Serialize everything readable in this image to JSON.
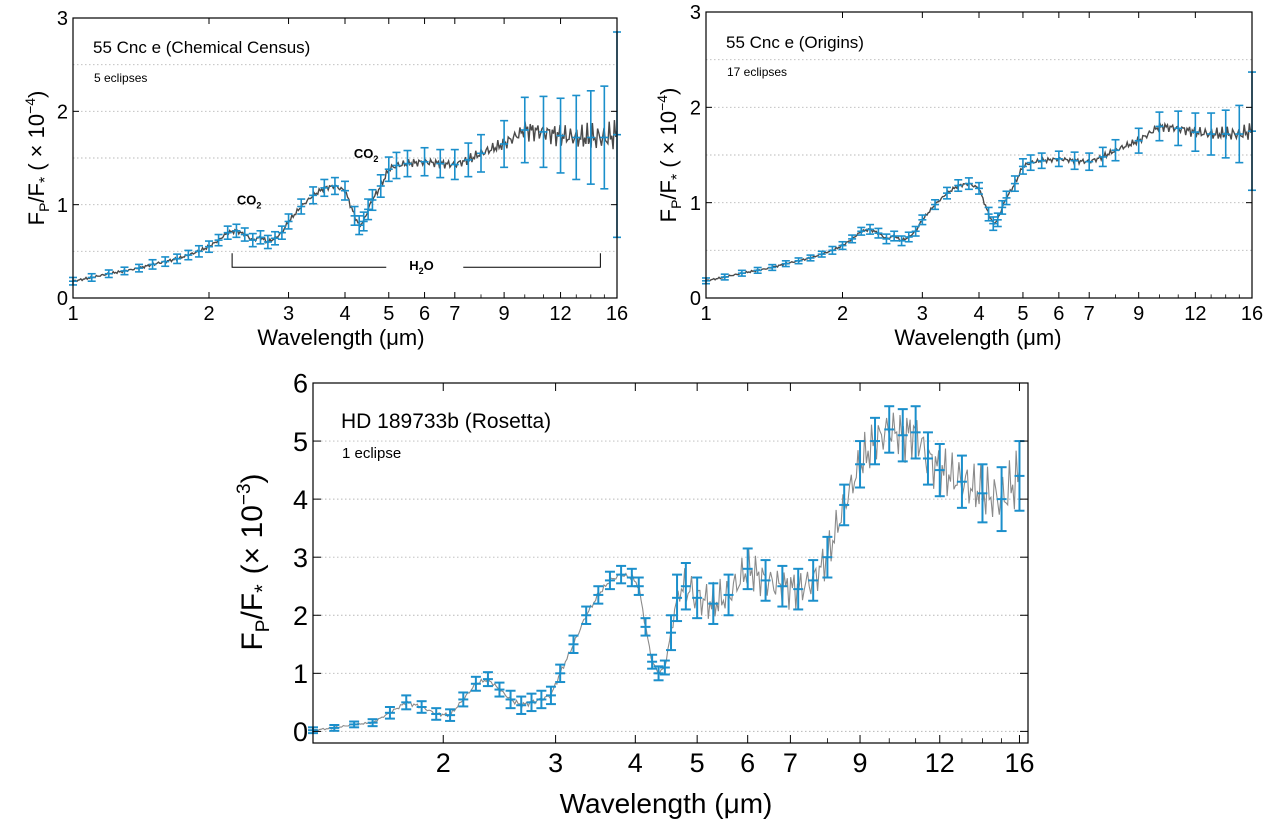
{
  "colors": {
    "errorbar": "#1b8fcb",
    "model_line_dark": "#4a4a4a",
    "model_line_grey": "#8a8a8a",
    "grid": "#b8b8b8",
    "frame": "#000000"
  },
  "chart_data": [
    {
      "type": "line",
      "title": "55 Cnc e (Chemical Census)",
      "subtitle": "5 eclipses",
      "xlabel": "Wavelength (μm)",
      "ylabel_main": "F",
      "ylabel_sub1": "P",
      "ylabel_mid": "/F",
      "ylabel_sub2": "*",
      "ylabel_scale": "( × 10",
      "ylabel_exp": "−4",
      "ylabel_close": ")",
      "x_scale": "log",
      "xlim": [
        1,
        16
      ],
      "ylim": [
        0,
        3
      ],
      "grid": "horizontal dotted",
      "xticks": [
        1,
        2,
        3,
        4,
        5,
        6,
        7,
        9,
        12,
        16
      ],
      "yticks": [
        0,
        1,
        2,
        3
      ],
      "x_ticklabels": [
        "1",
        "2",
        "3",
        "4",
        "5",
        "6",
        "7",
        "9",
        "12",
        "16"
      ],
      "y_ticklabels": [
        "0",
        "1",
        "2",
        "3"
      ],
      "annotations": [
        {
          "text": "CO",
          "sub": "2",
          "x": 2.45,
          "y": 1.0
        },
        {
          "text": "CO",
          "sub": "2",
          "x": 4.45,
          "y": 1.5
        },
        {
          "text": "H",
          "sub": "2",
          "after": "O",
          "x": 5.9,
          "y": 0.3
        }
      ],
      "h2o_bracket": {
        "x_start": 2.25,
        "x_end": 14.7,
        "y": 0.33
      },
      "spectrum": {
        "x": [
          1.0,
          1.1,
          1.2,
          1.3,
          1.4,
          1.5,
          1.6,
          1.7,
          1.8,
          1.9,
          2.0,
          2.1,
          2.2,
          2.3,
          2.4,
          2.5,
          2.6,
          2.7,
          2.8,
          2.9,
          3.0,
          3.2,
          3.4,
          3.6,
          3.8,
          4.0,
          4.2,
          4.3,
          4.4,
          4.5,
          4.6,
          4.8,
          5.0,
          5.2,
          5.5,
          6.0,
          6.5,
          7.0,
          7.5,
          8.0,
          9.0,
          10.0,
          11.0,
          12.0,
          13.0,
          14.0,
          15.0,
          16.0
        ],
        "y": [
          0.18,
          0.22,
          0.26,
          0.29,
          0.32,
          0.36,
          0.39,
          0.42,
          0.46,
          0.5,
          0.55,
          0.62,
          0.7,
          0.72,
          0.68,
          0.62,
          0.65,
          0.6,
          0.64,
          0.7,
          0.82,
          0.98,
          1.1,
          1.18,
          1.2,
          1.15,
          0.88,
          0.78,
          0.82,
          0.95,
          1.05,
          1.2,
          1.38,
          1.42,
          1.44,
          1.46,
          1.44,
          1.43,
          1.48,
          1.55,
          1.65,
          1.8,
          1.78,
          1.74,
          1.72,
          1.72,
          1.72,
          1.75
        ],
        "err": [
          0.04,
          0.04,
          0.04,
          0.04,
          0.04,
          0.05,
          0.05,
          0.05,
          0.05,
          0.06,
          0.06,
          0.06,
          0.07,
          0.07,
          0.07,
          0.07,
          0.07,
          0.07,
          0.07,
          0.07,
          0.08,
          0.08,
          0.09,
          0.09,
          0.09,
          0.1,
          0.1,
          0.1,
          0.1,
          0.11,
          0.11,
          0.12,
          0.13,
          0.14,
          0.14,
          0.15,
          0.15,
          0.16,
          0.18,
          0.2,
          0.25,
          0.35,
          0.38,
          0.4,
          0.45,
          0.5,
          0.55,
          1.1
        ]
      }
    },
    {
      "type": "line",
      "title": "55 Cnc e (Origins)",
      "subtitle": "17 eclipses",
      "xlabel": "Wavelength (μm)",
      "ylabel_main": "F",
      "ylabel_sub1": "P",
      "ylabel_mid": "/F",
      "ylabel_sub2": "*",
      "ylabel_scale": "( × 10",
      "ylabel_exp": "−4",
      "ylabel_close": ")",
      "x_scale": "log",
      "xlim": [
        1,
        16
      ],
      "ylim": [
        0,
        3
      ],
      "grid": "horizontal dotted",
      "xticks": [
        1,
        2,
        3,
        4,
        5,
        6,
        7,
        9,
        12,
        16
      ],
      "yticks": [
        0,
        1,
        2,
        3
      ],
      "x_ticklabels": [
        "1",
        "2",
        "3",
        "4",
        "5",
        "6",
        "7",
        "9",
        "12",
        "16"
      ],
      "y_ticklabels": [
        "0",
        "1",
        "2",
        "3"
      ],
      "spectrum": {
        "x": [
          1.0,
          1.1,
          1.2,
          1.3,
          1.4,
          1.5,
          1.6,
          1.7,
          1.8,
          1.9,
          2.0,
          2.1,
          2.2,
          2.3,
          2.4,
          2.5,
          2.6,
          2.7,
          2.8,
          2.9,
          3.0,
          3.2,
          3.4,
          3.6,
          3.8,
          4.0,
          4.2,
          4.3,
          4.4,
          4.5,
          4.6,
          4.8,
          5.0,
          5.2,
          5.5,
          6.0,
          6.5,
          7.0,
          7.5,
          8.0,
          9.0,
          10.0,
          11.0,
          12.0,
          13.0,
          14.0,
          15.0,
          16.0
        ],
        "y": [
          0.18,
          0.22,
          0.26,
          0.29,
          0.32,
          0.36,
          0.39,
          0.42,
          0.46,
          0.5,
          0.55,
          0.62,
          0.7,
          0.72,
          0.68,
          0.62,
          0.65,
          0.6,
          0.64,
          0.7,
          0.82,
          0.98,
          1.1,
          1.18,
          1.2,
          1.15,
          0.88,
          0.78,
          0.82,
          0.95,
          1.05,
          1.2,
          1.38,
          1.42,
          1.44,
          1.46,
          1.44,
          1.43,
          1.48,
          1.55,
          1.65,
          1.8,
          1.78,
          1.74,
          1.72,
          1.72,
          1.72,
          1.75
        ],
        "err": [
          0.03,
          0.03,
          0.03,
          0.03,
          0.03,
          0.03,
          0.03,
          0.03,
          0.03,
          0.04,
          0.04,
          0.04,
          0.04,
          0.05,
          0.05,
          0.05,
          0.05,
          0.05,
          0.05,
          0.05,
          0.05,
          0.05,
          0.06,
          0.06,
          0.06,
          0.06,
          0.07,
          0.07,
          0.07,
          0.07,
          0.07,
          0.08,
          0.08,
          0.08,
          0.08,
          0.08,
          0.09,
          0.09,
          0.1,
          0.11,
          0.13,
          0.15,
          0.18,
          0.2,
          0.22,
          0.25,
          0.3,
          0.62
        ]
      }
    },
    {
      "type": "line",
      "title": "HD 189733b (Rosetta)",
      "subtitle": "1 eclipse",
      "xlabel": "Wavelength (μm)",
      "ylabel_main": "F",
      "ylabel_sub1": "P",
      "ylabel_mid": "/F",
      "ylabel_sub2": "*",
      "ylabel_scale": "(× 10",
      "ylabel_exp": "−3",
      "ylabel_close": ")",
      "x_scale": "log",
      "xlim": [
        1.25,
        16.5
      ],
      "ylim": [
        -0.2,
        6
      ],
      "grid": "horizontal dotted",
      "xticks": [
        2,
        3,
        4,
        5,
        6,
        7,
        9,
        12,
        16
      ],
      "yticks": [
        0,
        1,
        2,
        3,
        4,
        5,
        6
      ],
      "x_ticklabels": [
        "2",
        "3",
        "4",
        "5",
        "6",
        "7",
        "9",
        "12",
        "16"
      ],
      "y_ticklabels": [
        "0",
        "1",
        "2",
        "3",
        "4",
        "5",
        "6"
      ],
      "spectrum": {
        "x": [
          1.25,
          1.35,
          1.45,
          1.55,
          1.65,
          1.75,
          1.85,
          1.95,
          2.05,
          2.15,
          2.25,
          2.35,
          2.45,
          2.55,
          2.65,
          2.75,
          2.85,
          2.95,
          3.05,
          3.2,
          3.35,
          3.5,
          3.65,
          3.8,
          3.95,
          4.05,
          4.15,
          4.25,
          4.35,
          4.45,
          4.55,
          4.65,
          4.8,
          5.0,
          5.3,
          5.6,
          6.0,
          6.4,
          6.8,
          7.2,
          7.6,
          8.0,
          8.5,
          9.0,
          9.5,
          10.0,
          10.5,
          11.0,
          11.5,
          12.0,
          13.0,
          14.0,
          15.0,
          16.0
        ],
        "y": [
          0.02,
          0.06,
          0.12,
          0.15,
          0.32,
          0.5,
          0.42,
          0.3,
          0.28,
          0.55,
          0.82,
          0.9,
          0.72,
          0.55,
          0.45,
          0.5,
          0.55,
          0.62,
          1.0,
          1.5,
          2.0,
          2.35,
          2.6,
          2.7,
          2.65,
          2.5,
          1.8,
          1.2,
          1.0,
          1.1,
          1.7,
          2.3,
          2.5,
          2.3,
          2.2,
          2.35,
          2.8,
          2.6,
          2.5,
          2.45,
          2.6,
          3.0,
          3.9,
          4.6,
          5.0,
          5.2,
          5.1,
          5.15,
          4.7,
          4.5,
          4.3,
          4.1,
          4.0,
          4.4
        ],
        "err": [
          0.05,
          0.05,
          0.05,
          0.06,
          0.1,
          0.12,
          0.1,
          0.1,
          0.1,
          0.12,
          0.12,
          0.12,
          0.12,
          0.15,
          0.15,
          0.15,
          0.15,
          0.15,
          0.15,
          0.15,
          0.15,
          0.15,
          0.15,
          0.15,
          0.15,
          0.15,
          0.15,
          0.12,
          0.12,
          0.12,
          0.3,
          0.4,
          0.4,
          0.35,
          0.35,
          0.35,
          0.35,
          0.35,
          0.35,
          0.35,
          0.35,
          0.35,
          0.35,
          0.4,
          0.4,
          0.4,
          0.45,
          0.45,
          0.45,
          0.45,
          0.45,
          0.5,
          0.55,
          0.6
        ]
      }
    }
  ]
}
